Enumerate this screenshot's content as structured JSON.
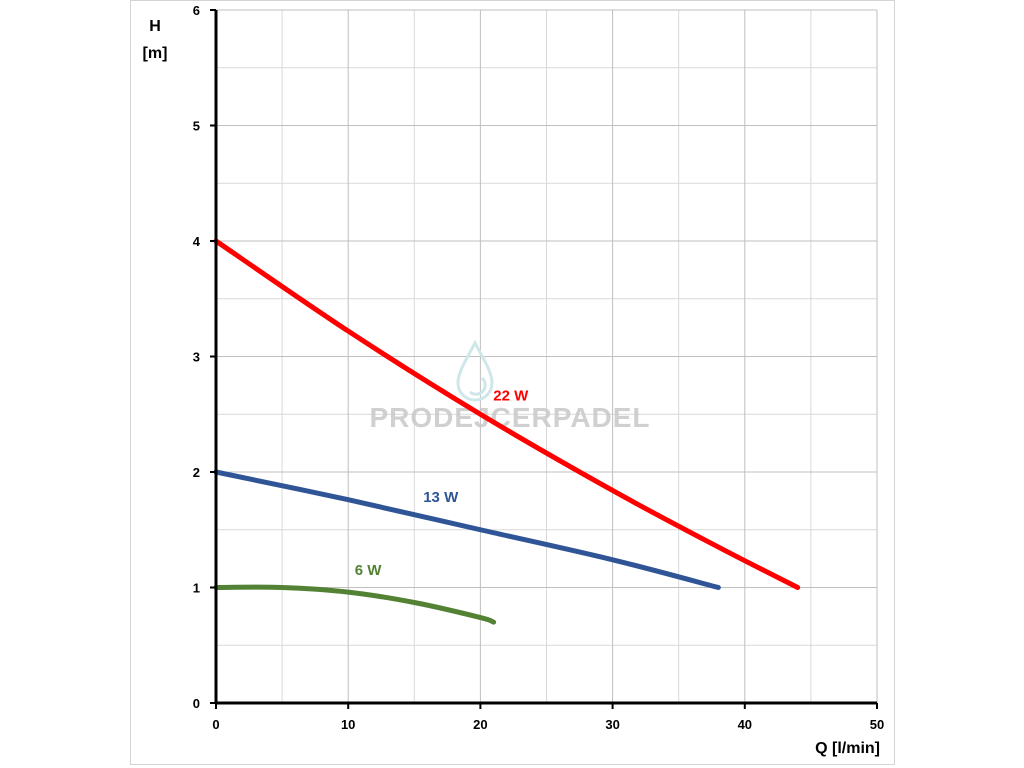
{
  "chart_data": {
    "type": "line",
    "xlabel": "Q [l/min]",
    "ylabel_line1": "H",
    "ylabel_line2": "[m]",
    "xlim": [
      0,
      50
    ],
    "ylim": [
      0,
      6
    ],
    "x_ticks": [
      0,
      10,
      20,
      30,
      40,
      50
    ],
    "y_ticks": [
      0,
      1,
      2,
      3,
      4,
      5,
      6
    ],
    "x_minor_step": 5,
    "y_minor_step": 0.5,
    "grid": true,
    "series": [
      {
        "name": "22 W",
        "color": "#ff0000",
        "x": [
          0,
          10,
          20,
          30,
          38,
          44
        ],
        "y": [
          4.0,
          3.22,
          2.5,
          1.84,
          1.35,
          1.0
        ]
      },
      {
        "name": "13 W",
        "color": "#2f5597",
        "x": [
          0,
          10,
          20,
          30,
          38
        ],
        "y": [
          2.0,
          1.76,
          1.5,
          1.24,
          1.0
        ]
      },
      {
        "name": "6 W",
        "color": "#548235",
        "x": [
          0,
          5,
          10,
          15,
          20,
          21
        ],
        "y": [
          1.0,
          1.0,
          0.96,
          0.87,
          0.74,
          0.7
        ]
      }
    ],
    "annotations": [
      {
        "series": "22 W",
        "text": "22 W",
        "x": 22.3,
        "y": 2.62
      },
      {
        "series": "13 W",
        "text": "13 W",
        "x": 17.0,
        "y": 1.74
      },
      {
        "series": "6 W",
        "text": "6 W",
        "x": 11.5,
        "y": 1.11
      }
    ]
  },
  "watermark": {
    "text": "PRODEJCERPADEL",
    "color": "#c8c8c8"
  }
}
